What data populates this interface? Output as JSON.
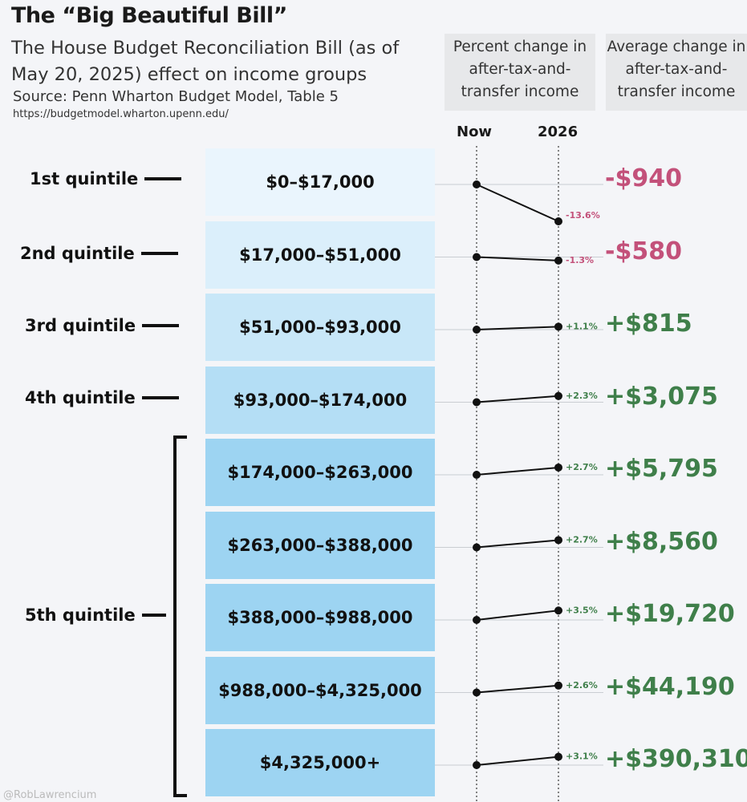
{
  "header": {
    "title": "The “Big Beautiful Bill”",
    "subtitle": "The House Budget Reconciliation Bill (as of May 20, 2025) effect on income groups",
    "source": "Source: Penn Wharton Budget Model, Table 5",
    "url": "https://budgetmodel.wharton.upenn.edu/",
    "watermark": "@RobLawrencium"
  },
  "columns": {
    "percent_change": "Percent change in after-tax-and-transfer income",
    "average_change": "Average change in after-tax-and-transfer income",
    "now": "Now",
    "year": "2026"
  },
  "quintiles": {
    "q1": "1st quintile",
    "q2": "2nd quintile",
    "q3": "3rd quintile",
    "q4": "4th quintile",
    "q5": "5th quintile"
  },
  "colors": {
    "negative": "#c3517a",
    "positive": "#3f7f4a",
    "band_shades": [
      "#eaf5fd",
      "#dbeffb",
      "#c8e7f8",
      "#b4def5",
      "#9dd4f2",
      "#9dd4f2",
      "#9dd4f2",
      "#9dd4f2",
      "#9dd4f2"
    ]
  },
  "chart_data": {
    "type": "line",
    "categories": [
      "$0–$17,000",
      "$17,000–$51,000",
      "$51,000–$93,000",
      "$93,000–$174,000",
      "$174,000–$263,000",
      "$263,000–$388,000",
      "$388,000–$988,000",
      "$988,000–$4,325,000",
      "$4,325,000+"
    ],
    "x": [
      "Now",
      "2026"
    ],
    "percent_change": [
      -13.6,
      -1.3,
      1.1,
      2.3,
      2.7,
      2.7,
      3.5,
      2.6,
      3.1
    ],
    "percent_labels": [
      "-13.6%",
      "-1.3%",
      "+1.1%",
      "+2.3%",
      "+2.7%",
      "+2.7%",
      "+3.5%",
      "+2.6%",
      "+3.1%"
    ],
    "average_change": [
      -940,
      -580,
      815,
      3075,
      5795,
      8560,
      19720,
      44190,
      390310
    ],
    "average_labels": [
      "-$940",
      "-$580",
      "+$815",
      "+$3,075",
      "+$5,795",
      "+$8,560",
      "+$19,720",
      "+$44,190",
      "+$390,310"
    ]
  }
}
